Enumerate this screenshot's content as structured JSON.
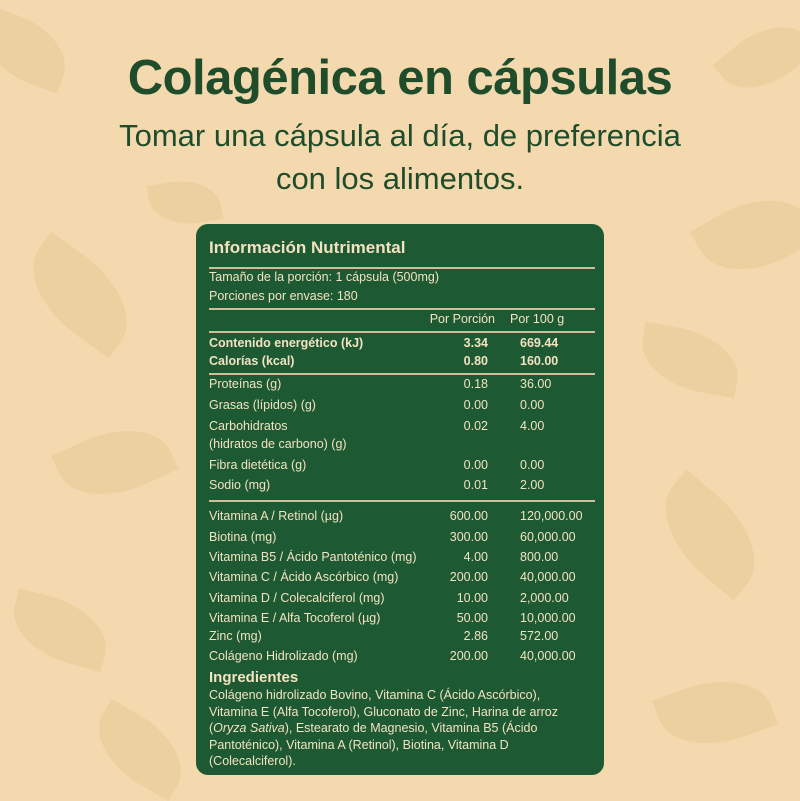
{
  "header": {
    "title": "Colagénica en cápsulas",
    "subtitle_line1": "Tomar una cápsula al día, de preferencia",
    "subtitle_line2": "con los alimentos."
  },
  "colors": {
    "background": "#f3d9ad",
    "panel": "#1d5a34",
    "title": "#1f4d2c",
    "panel_text": "#f3e2bf"
  },
  "nutrition": {
    "title": "Información Nutrimental",
    "serving_size": "Tamaño de la porción: 1 cápsula (500mg)",
    "servings_per_container": "Porciones por envase: 180",
    "col_per_serving": "Por Porción",
    "col_per_100g": "Por 100 g",
    "rows": [
      {
        "label": "Contenido energético (kJ)",
        "per_serving": "3.34",
        "per_100g": "669.44",
        "bold": true
      },
      {
        "label": "Calorías (kcal)",
        "per_serving": "0.80",
        "per_100g": "160.00",
        "bold": true
      },
      {
        "label": "Proteínas (g)",
        "per_serving": "0.18",
        "per_100g": "36.00"
      },
      {
        "label": "Grasas (lípidos) (g)",
        "per_serving": "0.00",
        "per_100g": "0.00"
      },
      {
        "label": "Carbohidratos",
        "label2": "(hidratos de carbono) (g)",
        "per_serving": "0.02",
        "per_100g": "4.00"
      },
      {
        "label": "Fibra dietética (g)",
        "per_serving": "0.00",
        "per_100g": "0.00"
      },
      {
        "label": "Sodio (mg)",
        "per_serving": "0.01",
        "per_100g": "2.00"
      },
      {
        "label": "Vitamina A / Retinol (µg)",
        "per_serving": "600.00",
        "per_100g": "120,000.00"
      },
      {
        "label": "Biotina (mg)",
        "per_serving": "300.00",
        "per_100g": "60,000.00"
      },
      {
        "label": "Vitamina B5 / Ácido Pantoténico (mg)",
        "per_serving": "4.00",
        "per_100g": "800.00"
      },
      {
        "label": "Vitamina C / Ácido Ascórbico (mg)",
        "per_serving": "200.00",
        "per_100g": "40,000.00"
      },
      {
        "label": "Vitamina D / Colecalciferol (mg)",
        "per_serving": "10.00",
        "per_100g": "2,000.00"
      },
      {
        "label": "Vitamina E / Alfa Tocoferol (µg)",
        "per_serving": "50.00",
        "per_100g": "10,000.00"
      },
      {
        "label": "Zinc (mg)",
        "per_serving": "2.86",
        "per_100g": "572.00"
      },
      {
        "label": "Colágeno Hidrolizado (mg)",
        "per_serving": "200.00",
        "per_100g": "40,000.00"
      }
    ],
    "ingredients_title": "Ingredientes",
    "ingredients_before_italic": "Colágeno hidrolizado Bovino, Vitamina C (Ácido Ascórbico), Vitamina E (Alfa Tocoferol), Gluconato de Zinc, Harina de arroz (",
    "ingredients_italic": "Oryza Sativa",
    "ingredients_after_italic": "), Estearato de Magnesio, Vitamina B5 (Ácido Pantoténico), Vitamina A (Retinol), Biotina, Vitamina D (Colecalciferol)."
  }
}
